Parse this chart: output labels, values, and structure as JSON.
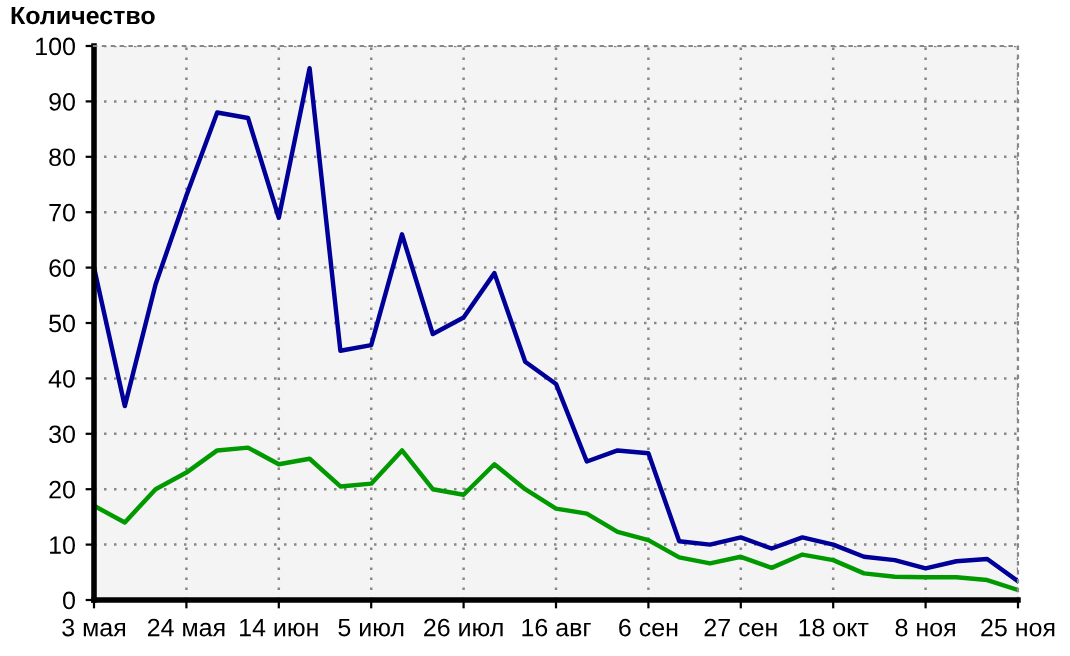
{
  "chart_data": {
    "type": "line",
    "ylabel": "Количество",
    "categories": [
      "3 мая",
      null,
      null,
      "24 мая",
      null,
      null,
      "14 июн",
      null,
      null,
      "5 июл",
      null,
      null,
      "26 июл",
      null,
      null,
      "16 авг",
      null,
      null,
      "6 сен",
      null,
      null,
      "27 сен",
      null,
      null,
      "18 окт",
      null,
      null,
      "8 ноя",
      null,
      null,
      "25 ноя"
    ],
    "series": [
      {
        "color": "#000099",
        "values": [
          60,
          35,
          57,
          73,
          88,
          87,
          69,
          96,
          45,
          46,
          66,
          48,
          51,
          59,
          43,
          39,
          25,
          27,
          26.5,
          10.6,
          10,
          11.3,
          9.3,
          11.3,
          10,
          7.8,
          7.2,
          5.7,
          7,
          7.4,
          3.4
        ]
      },
      {
        "color": "#009900",
        "values": [
          17,
          14,
          20,
          23,
          27,
          27.5,
          24.5,
          25.5,
          20.5,
          21,
          27,
          20,
          19,
          24.5,
          20,
          16.5,
          15.6,
          12.3,
          10.8,
          7.7,
          6.6,
          7.8,
          5.8,
          8.2,
          7.2,
          4.8,
          4.2,
          4.1,
          4.1,
          3.6,
          1.8
        ]
      }
    ],
    "ylim": [
      0,
      100
    ],
    "yticks": [
      0,
      10,
      20,
      30,
      40,
      50,
      60,
      70,
      80,
      90,
      100
    ],
    "grid": true,
    "marker": "none",
    "line_style": "solid"
  }
}
